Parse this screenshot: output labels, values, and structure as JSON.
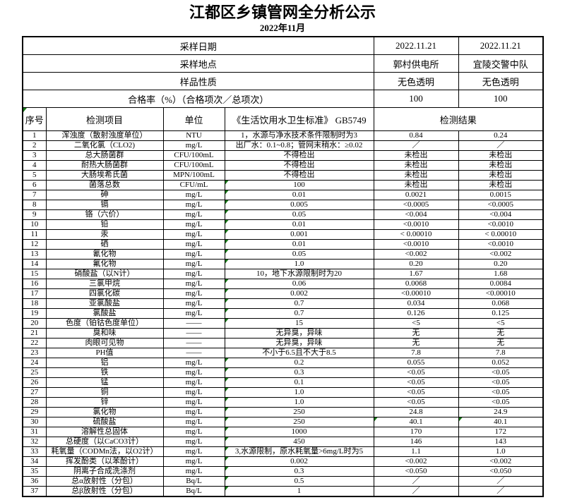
{
  "title": "江都区乡镇管网全分析公示",
  "subtitle": "2022年11月",
  "colors": {
    "marker_green": "#177817",
    "border": "#000000",
    "text": "#000000",
    "background": "#ffffff"
  },
  "info_rows": [
    {
      "label": "采样日期",
      "values": [
        "2022.11.21",
        "2022.11.21"
      ]
    },
    {
      "label": "采样地点",
      "values": [
        "郭村供电所",
        "宜陵交警中队"
      ]
    },
    {
      "label": "样品性质",
      "values": [
        "无色透明",
        "无色透明"
      ]
    },
    {
      "label": "合格率（%）（合格项次／总项次）",
      "values": [
        "100",
        "100"
      ]
    }
  ],
  "columns": {
    "seq": "序号",
    "item": "检测项目",
    "unit": "单位",
    "standard": "《生活饮用水卫生标准》 GB5749",
    "result": "检测结果"
  },
  "header_marker": true,
  "rows": [
    [
      "1",
      "浑浊度（散射浊度单位）",
      "NTU",
      "1，水源与净水技术条件限制时为3",
      "0.84",
      "0.24",
      ""
    ],
    [
      "2",
      "二氧化氯（CLO2)",
      "mg/L",
      "出厂水：0.1~0.8；管网末稍水：≥0.02",
      "／",
      "／",
      ""
    ],
    [
      "3",
      "总大肠菌群",
      "CFU/100mL",
      "不得检出",
      "未检出",
      "未检出",
      ""
    ],
    [
      "4",
      "耐热大肠菌群",
      "CFU/100mL",
      "不得检出",
      "未检出",
      "未检出",
      ""
    ],
    [
      "5",
      "大肠埃希氏菌",
      "MPN/100mL",
      "不得检出",
      "未检出",
      "未检出",
      ""
    ],
    [
      "6",
      "菌落总数",
      "CFU/mL",
      "100",
      "未检出",
      "未检出",
      "s"
    ],
    [
      "7",
      "砷",
      "mg/L",
      "0.01",
      "0.0021",
      "0.0015",
      "s"
    ],
    [
      "8",
      "镉",
      "mg/L",
      "0.005",
      "<0.0005",
      "<0.0005",
      "s"
    ],
    [
      "9",
      "铬（六价）",
      "mg/L",
      "0.05",
      "<0.004",
      "<0.004",
      "s"
    ],
    [
      "10",
      "铅",
      "mg/L",
      "0.01",
      "<0.0010",
      "<0.0010",
      "s"
    ],
    [
      "11",
      "汞",
      "mg/L",
      "0.001",
      "< 0.00010",
      "< 0.00010",
      "s"
    ],
    [
      "12",
      "硒",
      "mg/L",
      "0.01",
      "<0.0010",
      "<0.0010",
      "s"
    ],
    [
      "13",
      "氰化物",
      "mg/L",
      "0.05",
      "<0.002",
      "<0.002",
      "s"
    ],
    [
      "14",
      "氟化物",
      "mg/L",
      "1.0",
      "0.20",
      "0.20",
      "s"
    ],
    [
      "15",
      "硝酸盐（以N计）",
      "mg/L",
      "10，地下水源限制时为20",
      "1.67",
      "1.68",
      ""
    ],
    [
      "16",
      "三氯甲烷",
      "mg/L",
      "0.06",
      "0.0068",
      "0.0084",
      "s"
    ],
    [
      "17",
      "四氯化碳",
      "mg/L",
      "0.002",
      "<0.00010",
      "<0.00010",
      "s"
    ],
    [
      "18",
      "亚氯酸盐",
      "mg/L",
      "0.7",
      "0.034",
      "0.068",
      "s"
    ],
    [
      "19",
      "氯酸盐",
      "mg/L",
      "0.7",
      "0.126",
      "0.125",
      "s"
    ],
    [
      "20",
      "色度（铂钴色度单位）",
      "——",
      "15",
      "<5",
      "<5",
      "s"
    ],
    [
      "21",
      "臭和味",
      "——",
      "无异臭，异味",
      "无",
      "无",
      ""
    ],
    [
      "22",
      "肉眼可见物",
      "——",
      "无异臭，异味",
      "无",
      "无",
      ""
    ],
    [
      "23",
      "PH值",
      "——",
      "不小于6.5且不大于8.5",
      "7.8",
      "7.8",
      ""
    ],
    [
      "24",
      "铝",
      "mg/L",
      "0.2",
      "0.055",
      "0.052",
      "s"
    ],
    [
      "25",
      "铁",
      "mg/L",
      "0.3",
      "<0.05",
      "<0.05",
      "s"
    ],
    [
      "26",
      "锰",
      "mg/L",
      "0.1",
      "<0.05",
      "<0.05",
      "s"
    ],
    [
      "27",
      "铜",
      "mg/L",
      "1.0",
      "<0.05",
      "<0.05",
      "s"
    ],
    [
      "28",
      "锌",
      "mg/L",
      "1.0",
      "<0.05",
      "<0.05",
      "s"
    ],
    [
      "29",
      "氯化物",
      "mg/L",
      "250",
      "24.8",
      "24.9",
      "s"
    ],
    [
      "30",
      "硫酸盐",
      "mg/L",
      "250",
      "40.1",
      "40.1",
      "sab"
    ],
    [
      "31",
      "溶解性总固体",
      "mg/L",
      "1000",
      "170",
      "172",
      "s"
    ],
    [
      "32",
      "总硬度（以CaCO3计）",
      "mg/L",
      "450",
      "146",
      "143",
      "s"
    ],
    [
      "33",
      "耗氧量（CODMn法，以O2计）",
      "mg/L",
      "3,水源限制，原水耗氧量>6mg/L时为5",
      "1.1",
      "1.0",
      "s"
    ],
    [
      "34",
      "挥发酚类（以苯酚计）",
      "mg/L",
      "0.002",
      "<0.002",
      "<0.002",
      "s"
    ],
    [
      "35",
      "阴离子合成洗涤剂",
      "mg/L",
      "0.3",
      "<0.050",
      "<0.050",
      "s"
    ],
    [
      "36",
      "总α放射性（分包）",
      "Bq/L",
      "0.5",
      "／",
      "／",
      "s"
    ],
    [
      "37",
      "总β放射性（分包）",
      "Bq/L",
      "1",
      "／",
      "／",
      "s"
    ]
  ]
}
